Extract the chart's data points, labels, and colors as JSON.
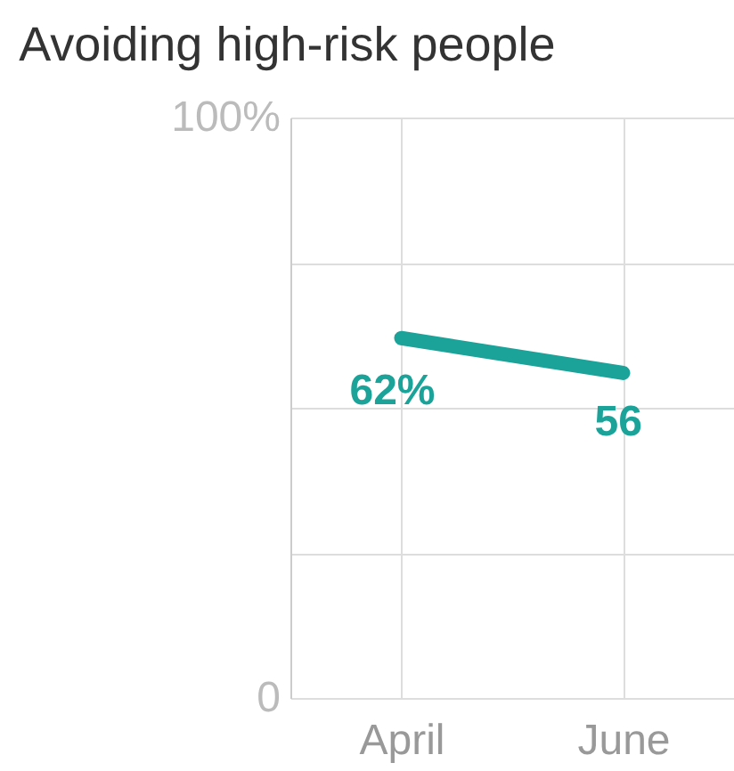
{
  "chart_data": {
    "type": "line",
    "title": "Avoiding high-risk people",
    "categories": [
      "April",
      "June"
    ],
    "series": [
      {
        "color": "#1ba39a",
        "values": [
          62,
          56
        ],
        "value_labels": [
          "62%",
          "56"
        ]
      }
    ],
    "ylim": [
      0,
      100
    ],
    "yticks": [
      0,
      {
        "value": 25,
        "label": null
      },
      {
        "value": 50,
        "label": null
      },
      {
        "value": 75,
        "label": null
      },
      {
        "value": 100,
        "label": "100%"
      }
    ],
    "grid": true,
    "marker": "none",
    "line_style": "solid"
  }
}
